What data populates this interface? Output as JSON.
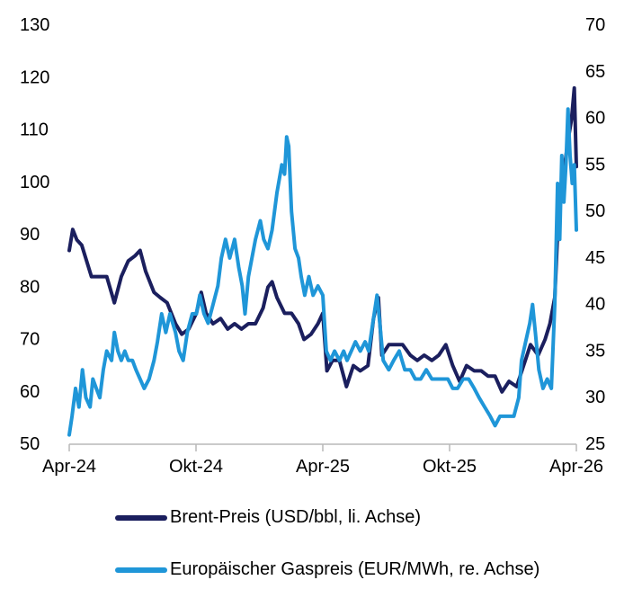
{
  "chart_data": {
    "type": "line",
    "title": "",
    "x_ticks": [
      "Apr-24",
      "Okt-24",
      "Apr-25",
      "Okt-25",
      "Apr-26"
    ],
    "x_range": [
      "2024-04-01",
      "2026-04-01"
    ],
    "y_left": {
      "range": [
        50,
        130
      ],
      "ticks": [
        50,
        60,
        70,
        80,
        90,
        100,
        110,
        120,
        130
      ]
    },
    "y_right": {
      "range": [
        25,
        70
      ],
      "ticks": [
        25,
        30,
        35,
        40,
        45,
        50,
        55,
        60,
        65,
        70
      ]
    },
    "grid": false,
    "legend_position": "bottom",
    "series": [
      {
        "name": "Brent-Preis (USD/bbl, li. Achse)",
        "axis": "left",
        "color": "#1b1f5e",
        "points": [
          [
            "2024-04-01",
            87
          ],
          [
            "2024-04-06",
            91
          ],
          [
            "2024-04-12",
            89
          ],
          [
            "2024-04-19",
            88
          ],
          [
            "2024-04-26",
            85
          ],
          [
            "2024-05-03",
            82
          ],
          [
            "2024-05-15",
            82
          ],
          [
            "2024-05-25",
            82
          ],
          [
            "2024-06-05",
            77
          ],
          [
            "2024-06-15",
            82
          ],
          [
            "2024-06-25",
            85
          ],
          [
            "2024-07-05",
            86
          ],
          [
            "2024-07-12",
            87
          ],
          [
            "2024-07-20",
            83
          ],
          [
            "2024-08-01",
            79
          ],
          [
            "2024-08-10",
            78
          ],
          [
            "2024-08-20",
            77
          ],
          [
            "2024-09-01",
            73
          ],
          [
            "2024-09-10",
            71
          ],
          [
            "2024-09-20",
            72
          ],
          [
            "2024-10-01",
            75
          ],
          [
            "2024-10-08",
            79
          ],
          [
            "2024-10-15",
            75
          ],
          [
            "2024-10-25",
            73
          ],
          [
            "2024-11-05",
            74
          ],
          [
            "2024-11-15",
            72
          ],
          [
            "2024-11-25",
            73
          ],
          [
            "2024-12-05",
            72
          ],
          [
            "2024-12-15",
            73
          ],
          [
            "2024-12-25",
            73
          ],
          [
            "2025-01-05",
            76
          ],
          [
            "2025-01-12",
            80
          ],
          [
            "2025-01-18",
            81
          ],
          [
            "2025-01-25",
            78
          ],
          [
            "2025-02-05",
            75
          ],
          [
            "2025-02-15",
            75
          ],
          [
            "2025-02-25",
            73
          ],
          [
            "2025-03-05",
            70
          ],
          [
            "2025-03-15",
            71
          ],
          [
            "2025-03-25",
            73
          ],
          [
            "2025-04-01",
            75
          ],
          [
            "2025-04-07",
            64
          ],
          [
            "2025-04-15",
            66
          ],
          [
            "2025-04-25",
            66
          ],
          [
            "2025-05-05",
            61
          ],
          [
            "2025-05-15",
            65
          ],
          [
            "2025-05-25",
            64
          ],
          [
            "2025-06-05",
            65
          ],
          [
            "2025-06-13",
            74
          ],
          [
            "2025-06-20",
            78
          ],
          [
            "2025-06-25",
            67
          ],
          [
            "2025-07-05",
            69
          ],
          [
            "2025-07-15",
            69
          ],
          [
            "2025-07-25",
            69
          ],
          [
            "2025-08-05",
            67
          ],
          [
            "2025-08-15",
            66
          ],
          [
            "2025-08-25",
            67
          ],
          [
            "2025-09-05",
            66
          ],
          [
            "2025-09-15",
            67
          ],
          [
            "2025-09-25",
            69
          ],
          [
            "2025-10-05",
            65
          ],
          [
            "2025-10-15",
            62
          ],
          [
            "2025-10-25",
            65
          ],
          [
            "2025-11-05",
            64
          ],
          [
            "2025-11-15",
            64
          ],
          [
            "2025-11-25",
            63
          ],
          [
            "2025-12-05",
            63
          ],
          [
            "2025-12-15",
            60
          ],
          [
            "2025-12-25",
            62
          ],
          [
            "2026-01-05",
            61
          ],
          [
            "2026-01-15",
            65
          ],
          [
            "2026-01-25",
            69
          ],
          [
            "2026-02-05",
            67
          ],
          [
            "2026-02-15",
            70
          ],
          [
            "2026-02-22",
            73
          ],
          [
            "2026-03-01",
            78
          ],
          [
            "2026-03-05",
            90
          ],
          [
            "2026-03-10",
            98
          ],
          [
            "2026-03-15",
            103
          ],
          [
            "2026-03-20",
            108
          ],
          [
            "2026-03-25",
            112
          ],
          [
            "2026-03-29",
            118
          ],
          [
            "2026-04-01",
            103
          ]
        ]
      },
      {
        "name": "Europäischer Gaspreis (EUR/MWh, re. Achse)",
        "axis": "right",
        "color": "#1f96d8",
        "points": [
          [
            "2024-04-01",
            26
          ],
          [
            "2024-04-05",
            28
          ],
          [
            "2024-04-10",
            31
          ],
          [
            "2024-04-15",
            29
          ],
          [
            "2024-04-20",
            33
          ],
          [
            "2024-04-25",
            30
          ],
          [
            "2024-05-01",
            29
          ],
          [
            "2024-05-05",
            32
          ],
          [
            "2024-05-10",
            31
          ],
          [
            "2024-05-15",
            30
          ],
          [
            "2024-05-20",
            33
          ],
          [
            "2024-05-25",
            35
          ],
          [
            "2024-06-01",
            34
          ],
          [
            "2024-06-05",
            37
          ],
          [
            "2024-06-10",
            35
          ],
          [
            "2024-06-15",
            34
          ],
          [
            "2024-06-20",
            35
          ],
          [
            "2024-06-25",
            34
          ],
          [
            "2024-07-01",
            34
          ],
          [
            "2024-07-06",
            33
          ],
          [
            "2024-07-12",
            32
          ],
          [
            "2024-07-18",
            31
          ],
          [
            "2024-07-25",
            32
          ],
          [
            "2024-08-01",
            34
          ],
          [
            "2024-08-06",
            36
          ],
          [
            "2024-08-12",
            39
          ],
          [
            "2024-08-18",
            37
          ],
          [
            "2024-08-24",
            39
          ],
          [
            "2024-09-01",
            37
          ],
          [
            "2024-09-06",
            35
          ],
          [
            "2024-09-12",
            34
          ],
          [
            "2024-09-18",
            37
          ],
          [
            "2024-09-25",
            39
          ],
          [
            "2024-10-01",
            39
          ],
          [
            "2024-10-06",
            41
          ],
          [
            "2024-10-12",
            39
          ],
          [
            "2024-10-18",
            38
          ],
          [
            "2024-10-25",
            40
          ],
          [
            "2024-11-01",
            42
          ],
          [
            "2024-11-06",
            45
          ],
          [
            "2024-11-12",
            47
          ],
          [
            "2024-11-18",
            45
          ],
          [
            "2024-11-25",
            47
          ],
          [
            "2024-12-01",
            44
          ],
          [
            "2024-12-06",
            42
          ],
          [
            "2024-12-10",
            39
          ],
          [
            "2024-12-15",
            43
          ],
          [
            "2024-12-20",
            45
          ],
          [
            "2024-12-25",
            47
          ],
          [
            "2025-01-01",
            49
          ],
          [
            "2025-01-06",
            47
          ],
          [
            "2025-01-12",
            46
          ],
          [
            "2025-01-18",
            48
          ],
          [
            "2025-01-25",
            52
          ],
          [
            "2025-02-01",
            55
          ],
          [
            "2025-02-05",
            54
          ],
          [
            "2025-02-08",
            58
          ],
          [
            "2025-02-11",
            57
          ],
          [
            "2025-02-15",
            50
          ],
          [
            "2025-02-20",
            46
          ],
          [
            "2025-02-25",
            45
          ],
          [
            "2025-03-01",
            43
          ],
          [
            "2025-03-06",
            41
          ],
          [
            "2025-03-12",
            43
          ],
          [
            "2025-03-18",
            41
          ],
          [
            "2025-03-25",
            42
          ],
          [
            "2025-04-01",
            41
          ],
          [
            "2025-04-06",
            35
          ],
          [
            "2025-04-12",
            34
          ],
          [
            "2025-04-18",
            35
          ],
          [
            "2025-04-25",
            34
          ],
          [
            "2025-05-01",
            35
          ],
          [
            "2025-05-06",
            34
          ],
          [
            "2025-05-12",
            35
          ],
          [
            "2025-05-18",
            36
          ],
          [
            "2025-05-25",
            35
          ],
          [
            "2025-06-01",
            36
          ],
          [
            "2025-06-06",
            35
          ],
          [
            "2025-06-12",
            38
          ],
          [
            "2025-06-18",
            41
          ],
          [
            "2025-06-22",
            38
          ],
          [
            "2025-06-27",
            34
          ],
          [
            "2025-07-05",
            33
          ],
          [
            "2025-07-12",
            34
          ],
          [
            "2025-07-20",
            35
          ],
          [
            "2025-07-28",
            33
          ],
          [
            "2025-08-05",
            33
          ],
          [
            "2025-08-12",
            32
          ],
          [
            "2025-08-20",
            32
          ],
          [
            "2025-08-28",
            33
          ],
          [
            "2025-09-05",
            32
          ],
          [
            "2025-09-12",
            32
          ],
          [
            "2025-09-20",
            32
          ],
          [
            "2025-09-28",
            32
          ],
          [
            "2025-10-05",
            31
          ],
          [
            "2025-10-12",
            31
          ],
          [
            "2025-10-20",
            32
          ],
          [
            "2025-10-28",
            32
          ],
          [
            "2025-11-05",
            31
          ],
          [
            "2025-11-12",
            30
          ],
          [
            "2025-11-20",
            29
          ],
          [
            "2025-11-28",
            28
          ],
          [
            "2025-12-05",
            27
          ],
          [
            "2025-12-12",
            28
          ],
          [
            "2025-12-18",
            28
          ],
          [
            "2025-12-25",
            28
          ],
          [
            "2026-01-01",
            28
          ],
          [
            "2026-01-08",
            30
          ],
          [
            "2026-01-12",
            34
          ],
          [
            "2026-01-18",
            36
          ],
          [
            "2026-01-24",
            38
          ],
          [
            "2026-01-28",
            40
          ],
          [
            "2026-02-01",
            37
          ],
          [
            "2026-02-06",
            33
          ],
          [
            "2026-02-12",
            31
          ],
          [
            "2026-02-18",
            32
          ],
          [
            "2026-02-24",
            31
          ],
          [
            "2026-03-01",
            40
          ],
          [
            "2026-03-05",
            53
          ],
          [
            "2026-03-08",
            47
          ],
          [
            "2026-03-11",
            56
          ],
          [
            "2026-03-14",
            51
          ],
          [
            "2026-03-17",
            55
          ],
          [
            "2026-03-20",
            61
          ],
          [
            "2026-03-23",
            56
          ],
          [
            "2026-03-26",
            53
          ],
          [
            "2026-03-29",
            55
          ],
          [
            "2026-04-01",
            48
          ]
        ]
      }
    ]
  }
}
